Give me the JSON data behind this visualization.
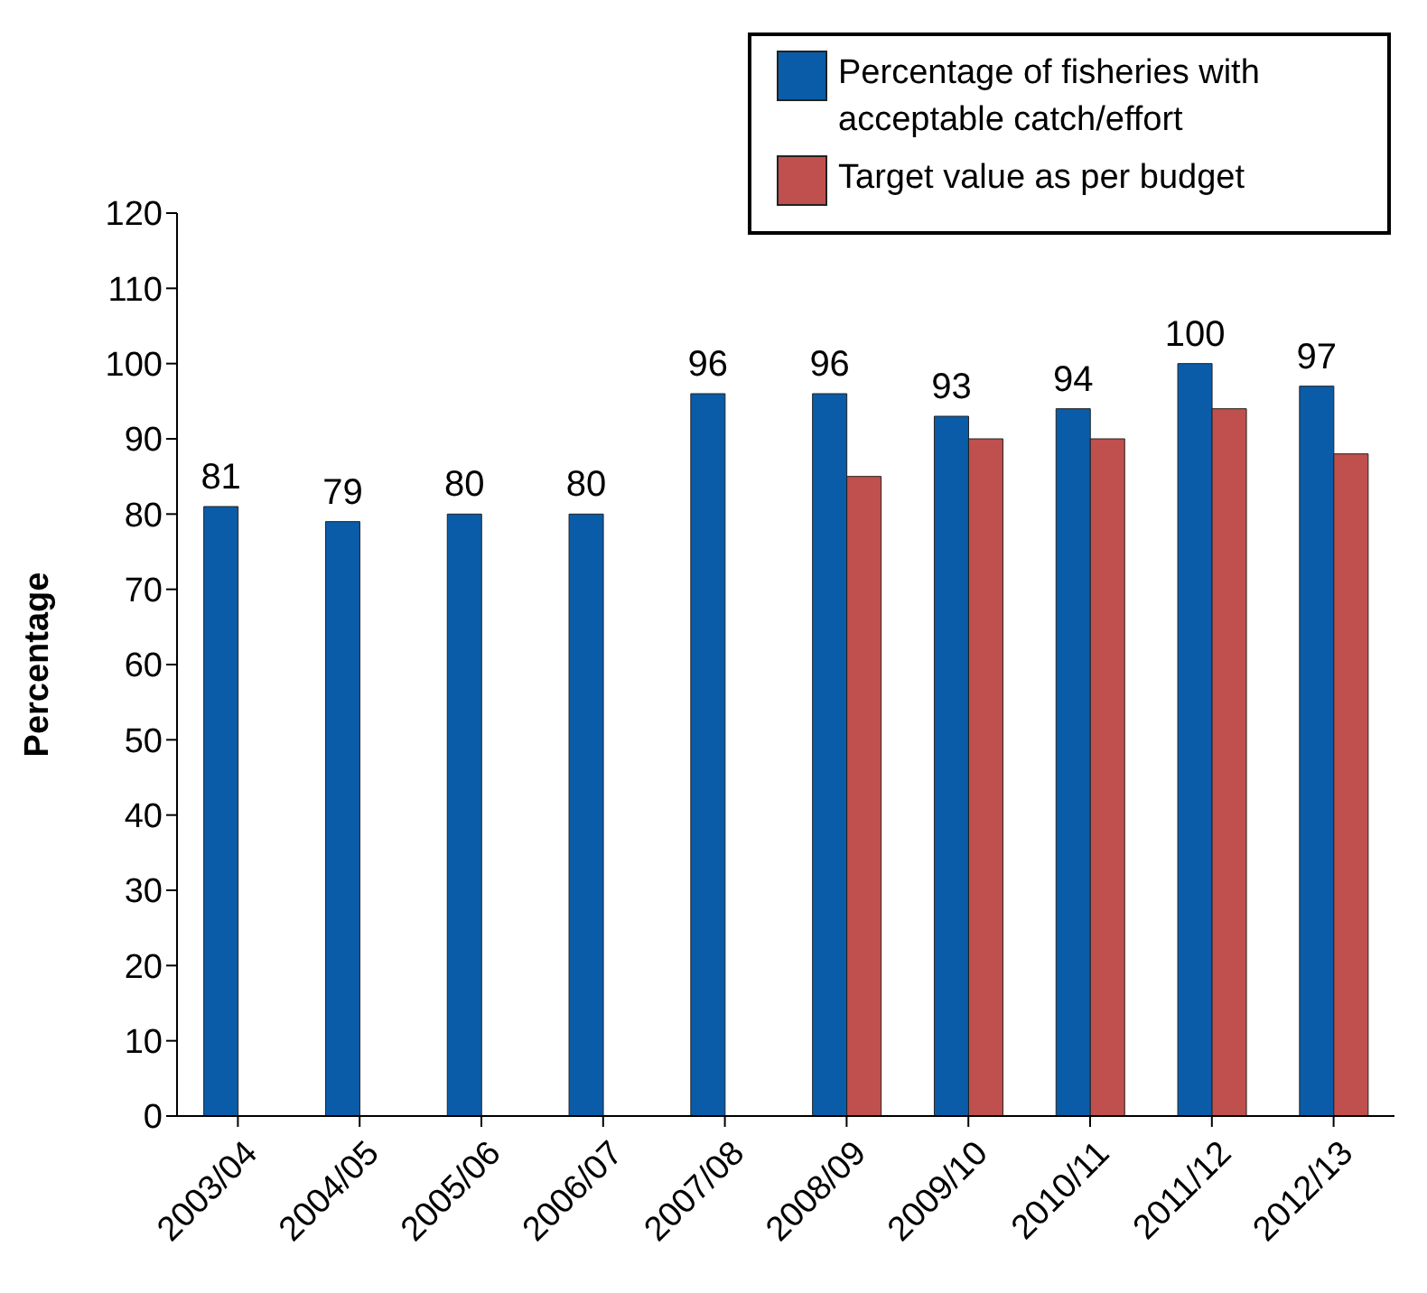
{
  "chart_data": {
    "type": "bar",
    "ylabel": "Percentage",
    "categories": [
      "2003/04",
      "2004/05",
      "2005/06",
      "2006/07",
      "2007/08",
      "2008/09",
      "2009/10",
      "2010/11",
      "2011/12",
      "2012/13"
    ],
    "series": [
      {
        "name": "Percentage of fisheries with acceptable catch/effort",
        "color": "#0a5ca8",
        "values": [
          81,
          79,
          80,
          80,
          96,
          96,
          93,
          94,
          100,
          97
        ],
        "value_labels": [
          "81",
          "79",
          "80",
          "80",
          "96",
          "96",
          "93",
          "94",
          "100",
          "97"
        ]
      },
      {
        "name": "Target value as per budget",
        "color": "#c0504d",
        "values": [
          null,
          null,
          null,
          null,
          null,
          85,
          90,
          90,
          94,
          88
        ]
      }
    ],
    "ylim": [
      0,
      120
    ],
    "yticks": [
      0,
      10,
      20,
      30,
      40,
      50,
      60,
      70,
      80,
      90,
      100,
      110,
      120
    ],
    "grid": false,
    "legend": "top right"
  }
}
